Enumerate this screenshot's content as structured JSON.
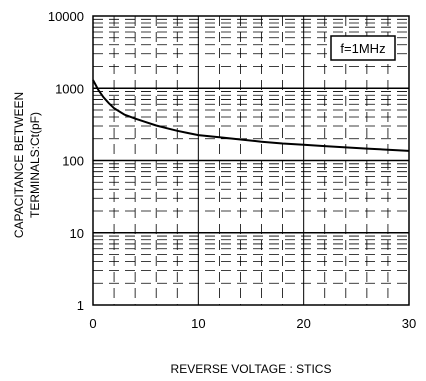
{
  "chart_data": {
    "type": "line",
    "title": "",
    "xlabel": "REVERSE VOLTAGE : STICS",
    "ylabel_lines": [
      "CAPACITANCE BETWEEN",
      "TERMINALS:Ct(pF)"
    ],
    "x_scale": "linear",
    "y_scale": "log",
    "xlim": [
      0,
      30
    ],
    "ylim": [
      1,
      10000
    ],
    "x_ticks": [
      0,
      10,
      20,
      30
    ],
    "x_tick_labels": [
      "0",
      "10",
      "20",
      "30"
    ],
    "y_ticks": [
      1,
      10,
      100,
      1000,
      10000
    ],
    "y_tick_labels": [
      "1",
      "10",
      "100",
      "1000",
      "10000"
    ],
    "grid": true,
    "annotation": "f=1MHz",
    "series": [
      {
        "x": [
          0,
          0.5,
          1,
          1.5,
          2,
          3,
          4,
          5,
          6,
          7,
          8,
          9,
          10,
          12,
          14,
          16,
          18,
          20,
          22,
          24,
          26,
          28,
          30
        ],
        "y": [
          1300,
          950,
          750,
          620,
          530,
          430,
          380,
          340,
          305,
          280,
          258,
          240,
          225,
          210,
          195,
          182,
          172,
          165,
          158,
          152,
          146,
          141,
          136
        ]
      }
    ]
  }
}
